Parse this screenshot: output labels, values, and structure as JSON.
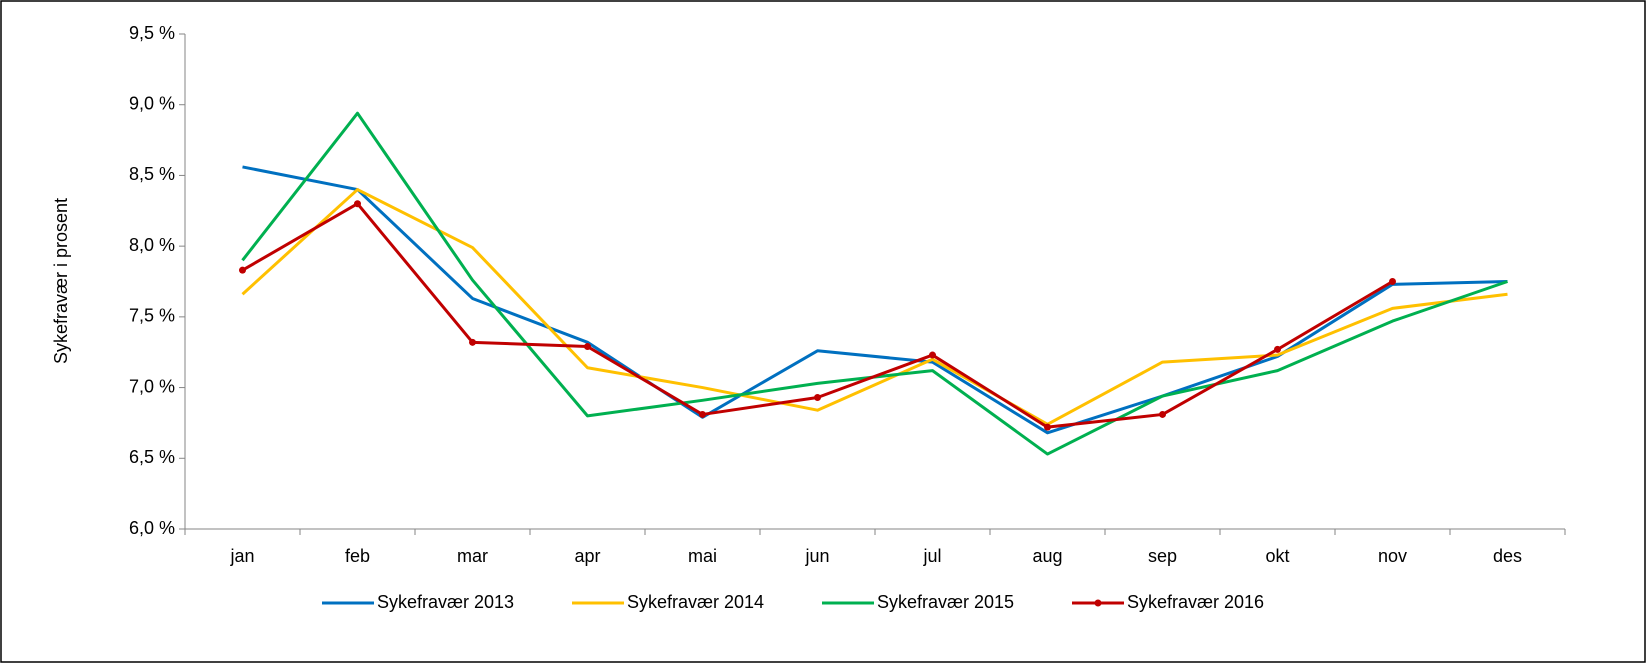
{
  "chart_data": {
    "type": "line",
    "ylabel": "Sykefravær i prosent",
    "categories": [
      "jan",
      "feb",
      "mar",
      "apr",
      "mai",
      "jun",
      "jul",
      "aug",
      "sep",
      "okt",
      "nov",
      "des"
    ],
    "series": [
      {
        "name": "Sykefravær 2013",
        "color": "#0070c0",
        "values": [
          8.56,
          8.4,
          7.63,
          7.32,
          6.79,
          7.26,
          7.18,
          6.68,
          6.94,
          7.22,
          7.73,
          7.75
        ]
      },
      {
        "name": "Sykefravær 2014",
        "color": "#ffc000",
        "values": [
          7.66,
          8.4,
          7.99,
          7.14,
          7.0,
          6.84,
          7.2,
          6.74,
          7.18,
          7.23,
          7.56,
          7.66
        ]
      },
      {
        "name": "Sykefravær 2015",
        "color": "#00b050",
        "values": [
          7.9,
          8.94,
          7.76,
          6.8,
          6.91,
          7.03,
          7.12,
          6.53,
          6.94,
          7.12,
          7.47,
          7.75
        ]
      },
      {
        "name": "Sykefravær 2016",
        "color": "#c00000",
        "markers": true,
        "values": [
          7.83,
          8.3,
          7.32,
          7.29,
          6.81,
          6.93,
          7.23,
          6.72,
          6.81,
          7.27,
          7.75,
          null
        ]
      }
    ],
    "ylim": [
      6.0,
      9.5
    ],
    "yticks": [
      {
        "value": 6.0,
        "label": "6,0 %"
      },
      {
        "value": 6.5,
        "label": "6,5 %"
      },
      {
        "value": 7.0,
        "label": "7,0 %"
      },
      {
        "value": 7.5,
        "label": "7,5 %"
      },
      {
        "value": 8.0,
        "label": "8,0 %"
      },
      {
        "value": 8.5,
        "label": "8,5 %"
      },
      {
        "value": 9.0,
        "label": "9,0 %"
      },
      {
        "value": 9.5,
        "label": "9,5 %"
      }
    ],
    "legend": "bottom"
  }
}
